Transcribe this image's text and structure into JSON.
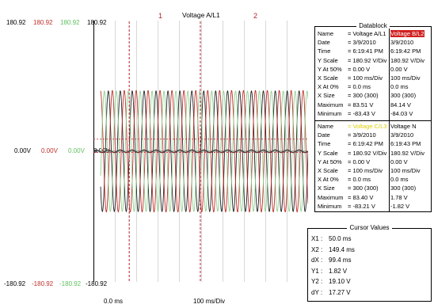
{
  "plot": {
    "title": "Voltage A/L1",
    "top_scales": [
      "180.92",
      "180.92",
      "180.92",
      "180.92"
    ],
    "mid_scales": [
      "0.00V",
      "0.00V",
      "0.00V",
      "0.00V"
    ],
    "bottom_scales": [
      "-180.92",
      "-180.92",
      "-180.92",
      "-180.92"
    ],
    "x_start": "0.0 ms",
    "x_div": "100 ms/Div",
    "cursor_labels": [
      "1",
      "2"
    ],
    "series_colors": {
      "A": "#222222",
      "B": "#c0302a",
      "C": "#90d090",
      "N": "#404040"
    },
    "scale_colors": [
      "#000000",
      "#c0302a",
      "#60c060",
      "#000000"
    ]
  },
  "chart_data": {
    "type": "line",
    "title": "Voltage A/L1",
    "xlabel": "100 ms/Div",
    "ylim": [
      -180.92,
      180.92
    ],
    "x_range_ms": [
      0,
      300
    ],
    "cursors_ms": [
      50.0,
      149.4
    ],
    "series": [
      {
        "name": "Voltage A/L1",
        "color": "#222222",
        "amplitude_v": 83.5,
        "frequency_hz": 60,
        "phase_deg": 0
      },
      {
        "name": "Voltage B/L2",
        "color": "#c0302a",
        "amplitude_v": 84.1,
        "frequency_hz": 60,
        "phase_deg": -120
      },
      {
        "name": "Voltage C/L3",
        "color": "#90d090",
        "amplitude_v": 83.3,
        "frequency_hz": 60,
        "phase_deg": 120
      },
      {
        "name": "Voltage N",
        "color": "#404040",
        "amplitude_v": 1.8,
        "frequency_hz": 60,
        "phase_deg": 0
      }
    ]
  },
  "datablock": {
    "title": "Datablock",
    "section1": {
      "rows": [
        {
          "label": "Name",
          "a": "= Voltage A/L1",
          "b": "Voltage B/L2"
        },
        {
          "label": "Date",
          "a": "= 3/9/2010",
          "b": "3/9/2010"
        },
        {
          "label": "Time",
          "a": "= 6:19:41 PM",
          "b": "6:19:42 PM"
        },
        {
          "label": "Y Scale",
          "a": "= 180.92 V/Div",
          "b": "180.92 V/Div"
        },
        {
          "label": "Y At 50%",
          "a": "=    0.00 V",
          "b": "0.00 V"
        },
        {
          "label": "X Scale",
          "a": "= 100   ms/Div",
          "b": "100   ms/Div"
        },
        {
          "label": "X At 0%",
          "a": "=    0.0   ms",
          "b": "0.0   ms"
        },
        {
          "label": "X Size",
          "a": "= 300 (300)",
          "b": "300 (300)"
        },
        {
          "label": "Maximum",
          "a": "=   83.51 V",
          "b": "84.14 V"
        },
        {
          "label": "Minimum",
          "a": "=  -83.43 V",
          "b": "-84.03 V"
        }
      ]
    },
    "section2": {
      "rows": [
        {
          "label": "Name",
          "a": "= Voltage C/L3",
          "b": "Voltage N"
        },
        {
          "label": "Date",
          "a": "= 3/9/2010",
          "b": "3/9/2010"
        },
        {
          "label": "Time",
          "a": "= 6:19:42 PM",
          "b": "6:19:43 PM"
        },
        {
          "label": "Y Scale",
          "a": "= 180.92 V/Div",
          "b": "180.92 V/Div"
        },
        {
          "label": "Y At 50%",
          "a": "=    0.00 V",
          "b": "0.00 V"
        },
        {
          "label": "X Scale",
          "a": "= 100   ms/Div",
          "b": "100   ms/Div"
        },
        {
          "label": "X At 0%",
          "a": "=    0.0   ms",
          "b": "0.0   ms"
        },
        {
          "label": "X Size",
          "a": "= 300 (300)",
          "b": "300 (300)"
        },
        {
          "label": "Maximum",
          "a": "=   83.40 V",
          "b": "1.78 V"
        },
        {
          "label": "Minimum",
          "a": "=  -83.21 V",
          "b": "-1.82 V"
        }
      ]
    }
  },
  "cursor_values": {
    "title": "Cursor Values",
    "rows": [
      {
        "label": "X1 :",
        "value": "50.0  ms"
      },
      {
        "label": "X2 :",
        "value": "149.4  ms"
      },
      {
        "label": "dX :",
        "value": "99.4  ms"
      },
      {
        "label": "Y1 :",
        "value": "1.82 V"
      },
      {
        "label": "Y2 :",
        "value": "19.10 V"
      },
      {
        "label": "dY :",
        "value": "17.27 V"
      }
    ]
  }
}
